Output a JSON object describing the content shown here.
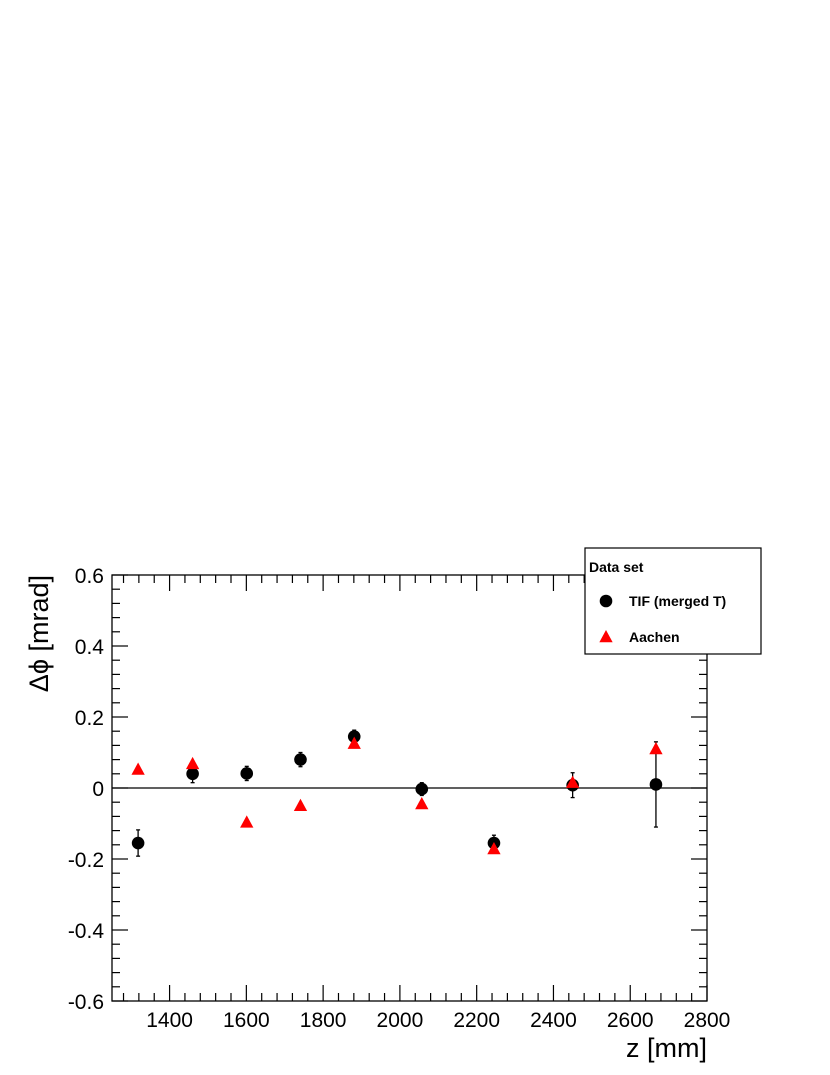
{
  "chart_data": {
    "type": "scatter",
    "xlabel": "z [mm]",
    "ylabel": "Δϕ [mrad]",
    "xlim": [
      1250,
      2800
    ],
    "ylim": [
      -0.6,
      0.6
    ],
    "x_major_ticks": [
      1400,
      1600,
      1800,
      2000,
      2200,
      2400,
      2600,
      2800
    ],
    "x_tick_labels": [
      "1400",
      "1600",
      "1800",
      "2000",
      "2200",
      "2400",
      "2600",
      "2800"
    ],
    "y_major_ticks": [
      -0.6,
      -0.4,
      -0.2,
      0,
      0.2,
      0.4,
      0.6
    ],
    "y_tick_labels": [
      "-0.6",
      "-0.4",
      "-0.2",
      "0",
      "0.2",
      "0.4",
      "0.6"
    ],
    "reference_line_y": 0,
    "legend": {
      "title": "Data set",
      "placement": "top-right"
    },
    "series": [
      {
        "name": "TIF (merged T)",
        "marker": "circle",
        "color": "#000000",
        "points": [
          {
            "x": 1318,
            "y": -0.155,
            "err": 0.037
          },
          {
            "x": 1460,
            "y": 0.04,
            "err": 0.025
          },
          {
            "x": 1601,
            "y": 0.041,
            "err": 0.02
          },
          {
            "x": 1741,
            "y": 0.08,
            "err": 0.02
          },
          {
            "x": 1881,
            "y": 0.145,
            "err": 0.018
          },
          {
            "x": 2057,
            "y": -0.003,
            "err": 0.018
          },
          {
            "x": 2245,
            "y": -0.155,
            "err": 0.022
          },
          {
            "x": 2450,
            "y": 0.008,
            "err": 0.035
          },
          {
            "x": 2667,
            "y": 0.01,
            "err": 0.12
          }
        ]
      },
      {
        "name": "Aachen",
        "marker": "triangle",
        "color": "#ff0000",
        "points": [
          {
            "x": 1318,
            "y": 0.052
          },
          {
            "x": 1460,
            "y": 0.068
          },
          {
            "x": 1601,
            "y": -0.097
          },
          {
            "x": 1741,
            "y": -0.05
          },
          {
            "x": 1881,
            "y": 0.125
          },
          {
            "x": 2057,
            "y": -0.045
          },
          {
            "x": 2245,
            "y": -0.172
          },
          {
            "x": 2450,
            "y": 0.015
          },
          {
            "x": 2667,
            "y": 0.11
          }
        ]
      }
    ]
  }
}
